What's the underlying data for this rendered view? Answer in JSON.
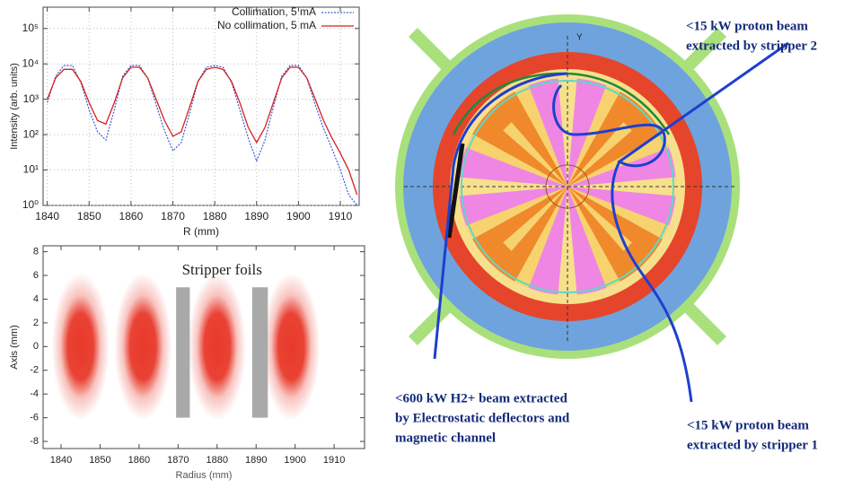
{
  "chart_data": [
    {
      "type": "line",
      "ylabel": "Intensity (arb. units)",
      "xlabel": "R (mm)",
      "x": [
        1840,
        1842,
        1844,
        1846,
        1848,
        1850,
        1852,
        1854,
        1856,
        1858,
        1860,
        1862,
        1864,
        1866,
        1868,
        1870,
        1872,
        1874,
        1876,
        1878,
        1880,
        1882,
        1884,
        1886,
        1888,
        1890,
        1892,
        1894,
        1896,
        1898,
        1900,
        1902,
        1904,
        1906,
        1908,
        1910,
        1912,
        1914
      ],
      "series": [
        {
          "name": "Collimation, 5 mA",
          "color": "#3a5fcd",
          "dash": "dotted",
          "values": [
            800,
            4500,
            9000,
            9000,
            3000,
            500,
            120,
            70,
            500,
            4500,
            9000,
            9000,
            4000,
            700,
            130,
            35,
            60,
            400,
            3200,
            8000,
            9000,
            8000,
            3000,
            500,
            80,
            18,
            70,
            600,
            4500,
            9000,
            9000,
            4000,
            700,
            150,
            40,
            10,
            2,
            1
          ]
        },
        {
          "name": "No collimation, 5 mA",
          "color": "#d62020",
          "dash": "solid",
          "values": [
            1000,
            4000,
            7000,
            7000,
            3200,
            800,
            250,
            200,
            800,
            4000,
            8000,
            8000,
            4000,
            1000,
            250,
            90,
            120,
            600,
            3200,
            7000,
            8000,
            7000,
            3200,
            800,
            160,
            60,
            160,
            800,
            4000,
            8000,
            8000,
            4000,
            1000,
            250,
            80,
            30,
            10,
            2
          ]
        }
      ],
      "xlim": [
        1839,
        1914.5
      ],
      "xticks": [
        1840,
        1850,
        1860,
        1870,
        1880,
        1890,
        1900,
        1910
      ],
      "ylim": [
        1,
        400000
      ],
      "yscale": "log",
      "yticks": [
        {
          "value": 1,
          "label": "10⁰"
        },
        {
          "value": 10,
          "label": "10¹"
        },
        {
          "value": 100,
          "label": "10²"
        },
        {
          "value": 1000,
          "label": "10³"
        },
        {
          "value": 10000,
          "label": "10⁴"
        },
        {
          "value": 100000,
          "label": "10⁵"
        }
      ],
      "grid": true,
      "legend": "top-right"
    },
    {
      "type": "scatter",
      "ylabel": "Axis (mm)",
      "xlabel": "Radius (mm)",
      "annotation": "Stripper foils",
      "x": [
        1845,
        1861,
        1880,
        1899
      ],
      "values": [
        0,
        0,
        0,
        0
      ],
      "color": "#e8392a",
      "foils": [
        {
          "x": [
            1869.5,
            1873
          ],
          "y": [
            -6,
            5
          ]
        },
        {
          "x": [
            1889,
            1893
          ],
          "y": [
            -6,
            5
          ]
        }
      ],
      "xlim": [
        1835.4,
        1917.8
      ],
      "xticks": [
        1840,
        1850,
        1860,
        1870,
        1880,
        1890,
        1900,
        1910
      ],
      "ylim": [
        -8.6,
        8.5
      ],
      "yticks": [
        -8,
        -6,
        -4,
        -2,
        0,
        2,
        4,
        6,
        8
      ],
      "grid": false
    }
  ],
  "diagram": {
    "axis_label": "Y",
    "labels": [
      [
        "<15 kW proton beam",
        "extracted by stripper 2"
      ],
      [
        "<600 kW H2+ beam extracted",
        "by Electrostatic deflectors and",
        "magnetic channel"
      ],
      [
        "<15 kW proton beam",
        "extracted by stripper 1"
      ]
    ]
  }
}
